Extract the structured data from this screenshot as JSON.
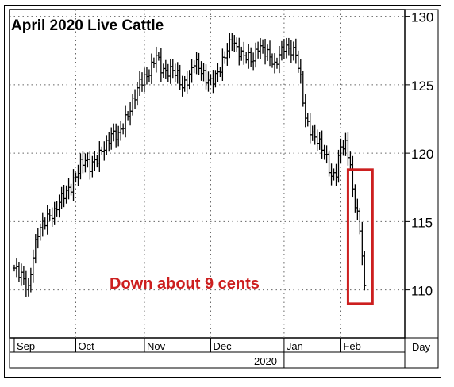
{
  "chart_data": {
    "type": "ohlc-bar",
    "title": "April 2020 Live Cattle",
    "annotation": "Down about 9 cents",
    "x_unit_label": "Day",
    "year_label": "2020",
    "months": [
      "Sep",
      "Oct",
      "Nov",
      "Dec",
      "Jan",
      "Feb"
    ],
    "yticks": [
      110,
      115,
      120,
      125,
      130
    ],
    "ylim": [
      106.5,
      130.5
    ],
    "grid": true,
    "highlight": {
      "from_day": 141,
      "to_day": 148,
      "low": 109,
      "high": 118.8
    },
    "colors": {
      "bars": "#000000",
      "annotation": "#cc1f1f",
      "grid": "#666666"
    },
    "closes": [
      [
        0,
        111.6
      ],
      [
        3,
        111.1
      ],
      [
        6,
        110.0
      ],
      [
        8,
        112.5
      ],
      [
        10,
        114.2
      ],
      [
        12,
        114.8
      ],
      [
        14,
        115.3
      ],
      [
        17,
        115.6
      ],
      [
        19,
        116.5
      ],
      [
        21,
        117.0
      ],
      [
        24,
        117.5
      ],
      [
        26,
        118.3
      ],
      [
        28,
        119.2
      ],
      [
        30,
        119.5
      ],
      [
        32,
        119.0
      ],
      [
        35,
        119.6
      ],
      [
        37,
        120.2
      ],
      [
        39,
        120.6
      ],
      [
        41,
        121.4
      ],
      [
        44,
        121.3
      ],
      [
        46,
        122.1
      ],
      [
        49,
        123.2
      ],
      [
        51,
        124.2
      ],
      [
        53,
        125.2
      ],
      [
        56,
        125.6
      ],
      [
        58,
        126.3
      ],
      [
        60,
        127.2
      ],
      [
        62,
        126.2
      ],
      [
        64,
        125.9
      ],
      [
        67,
        126.1
      ],
      [
        69,
        125.7
      ],
      [
        71,
        124.8
      ],
      [
        74,
        125.6
      ],
      [
        76,
        126.7
      ],
      [
        78,
        126.3
      ],
      [
        81,
        125.4
      ],
      [
        83,
        125.2
      ],
      [
        85,
        125.6
      ],
      [
        87,
        126.2
      ],
      [
        90,
        127.6
      ],
      [
        92,
        128.3
      ],
      [
        94,
        127.6
      ],
      [
        96,
        127.2
      ],
      [
        99,
        127.0
      ],
      [
        101,
        126.8
      ],
      [
        103,
        127.8
      ],
      [
        105,
        127.6
      ],
      [
        108,
        127.1
      ],
      [
        110,
        126.3
      ],
      [
        112,
        127.2
      ],
      [
        114,
        127.8
      ],
      [
        116,
        127.6
      ],
      [
        119,
        127.3
      ],
      [
        121,
        125.4
      ],
      [
        123,
        122.5
      ],
      [
        126,
        121.3
      ],
      [
        128,
        121.0
      ],
      [
        130,
        120.4
      ],
      [
        132,
        119.6
      ],
      [
        134,
        118.2
      ],
      [
        136,
        118.6
      ],
      [
        138,
        120.5
      ],
      [
        140,
        120.6
      ],
      [
        142,
        119.2
      ],
      [
        143,
        117.1
      ],
      [
        145,
        115.6
      ],
      [
        147,
        112.8
      ],
      [
        148,
        110.0
      ]
    ]
  }
}
